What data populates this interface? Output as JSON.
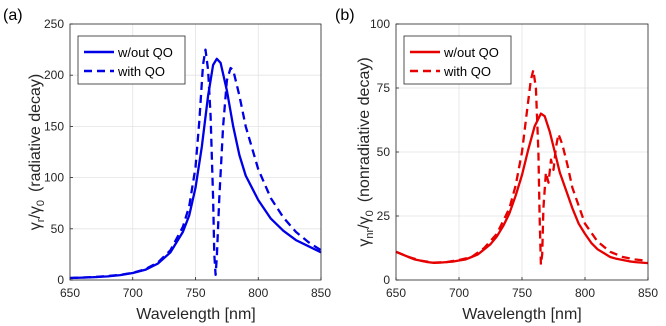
{
  "chart_data": [
    {
      "type": "line",
      "panel_label": "(a)",
      "xlabel": "Wavelength [nm]",
      "ylabel_symbol": "γ",
      "ylabel_sub1": "r",
      "ylabel_sep": "/γ",
      "ylabel_sub2": "0",
      "ylabel_desc": "(radiative decay)",
      "xlim": [
        650,
        850
      ],
      "ylim": [
        0,
        250
      ],
      "xticks": [
        650,
        700,
        750,
        800,
        850
      ],
      "yticks": [
        0,
        50,
        100,
        150,
        200,
        250
      ],
      "grid": true,
      "legend_position": "top-left",
      "color": "#0000e6",
      "series": [
        {
          "name": "w/out QO",
          "style": "solid",
          "points": [
            [
              650,
              2
            ],
            [
              660,
              2.3
            ],
            [
              670,
              2.8
            ],
            [
              680,
              3.5
            ],
            [
              690,
              4.8
            ],
            [
              700,
              6.8
            ],
            [
              710,
              10
            ],
            [
              720,
              16
            ],
            [
              730,
              27
            ],
            [
              740,
              47
            ],
            [
              745,
              63
            ],
            [
              750,
              90
            ],
            [
              755,
              130
            ],
            [
              760,
              180
            ],
            [
              764,
              210
            ],
            [
              767,
              216
            ],
            [
              770,
              212
            ],
            [
              775,
              185
            ],
            [
              780,
              150
            ],
            [
              785,
              122
            ],
            [
              790,
              102
            ],
            [
              800,
              78
            ],
            [
              810,
              60
            ],
            [
              820,
              48
            ],
            [
              830,
              39
            ],
            [
              840,
              33
            ],
            [
              850,
              27
            ]
          ]
        },
        {
          "name": "with QO",
          "style": "dashed",
          "points": [
            [
              650,
              2
            ],
            [
              670,
              2.9
            ],
            [
              690,
              5
            ],
            [
              700,
              7
            ],
            [
              710,
              10.5
            ],
            [
              720,
              17
            ],
            [
              730,
              29
            ],
            [
              740,
              52
            ],
            [
              745,
              72
            ],
            [
              750,
              110
            ],
            [
              753,
              155
            ],
            [
              756,
              210
            ],
            [
              758,
              225
            ],
            [
              760,
              205
            ],
            [
              762,
              160
            ],
            [
              764,
              80
            ],
            [
              765,
              25
            ],
            [
              766,
              5
            ],
            [
              767,
              22
            ],
            [
              769,
              80
            ],
            [
              772,
              150
            ],
            [
              775,
              195
            ],
            [
              778,
              207
            ],
            [
              780,
              205
            ],
            [
              785,
              180
            ],
            [
              790,
              150
            ],
            [
              800,
              108
            ],
            [
              810,
              80
            ],
            [
              820,
              61
            ],
            [
              830,
              47
            ],
            [
              840,
              37
            ],
            [
              850,
              29
            ]
          ]
        }
      ]
    },
    {
      "type": "line",
      "panel_label": "(b)",
      "xlabel": "Wavelength [nm]",
      "ylabel_symbol": "γ",
      "ylabel_sub1": "nr",
      "ylabel_sep": "/γ",
      "ylabel_sub2": "0",
      "ylabel_desc": "(nonradiative decay)",
      "xlim": [
        650,
        850
      ],
      "ylim": [
        0,
        100
      ],
      "xticks": [
        650,
        700,
        750,
        800,
        850
      ],
      "yticks": [
        0,
        25,
        50,
        75,
        100
      ],
      "grid": true,
      "legend_position": "top-left",
      "color": "#e60000",
      "series": [
        {
          "name": "w/out QO",
          "style": "solid",
          "points": [
            [
              650,
              11
            ],
            [
              655,
              10
            ],
            [
              660,
              9
            ],
            [
              665,
              8
            ],
            [
              670,
              7.5
            ],
            [
              675,
              7
            ],
            [
              680,
              6.7
            ],
            [
              685,
              6.8
            ],
            [
              690,
              7
            ],
            [
              695,
              7.2
            ],
            [
              700,
              7.6
            ],
            [
              705,
              8
            ],
            [
              710,
              9
            ],
            [
              715,
              10
            ],
            [
              720,
              12
            ],
            [
              725,
              14
            ],
            [
              730,
              17
            ],
            [
              735,
              21
            ],
            [
              740,
              26
            ],
            [
              745,
              33
            ],
            [
              750,
              41
            ],
            [
              755,
              51
            ],
            [
              760,
              60
            ],
            [
              765,
              65
            ],
            [
              768,
              64
            ],
            [
              772,
              58
            ],
            [
              776,
              50
            ],
            [
              780,
              42
            ],
            [
              785,
              35
            ],
            [
              790,
              28
            ],
            [
              795,
              22
            ],
            [
              800,
              18
            ],
            [
              805,
              14.5
            ],
            [
              810,
              12
            ],
            [
              815,
              10.5
            ],
            [
              820,
              9
            ],
            [
              825,
              8.3
            ],
            [
              830,
              7.8
            ],
            [
              835,
              7.3
            ],
            [
              840,
              7
            ],
            [
              845,
              6.8
            ],
            [
              850,
              6.6
            ]
          ]
        },
        {
          "name": "with QO",
          "style": "dashed",
          "points": [
            [
              650,
              11
            ],
            [
              660,
              9
            ],
            [
              670,
              7.5
            ],
            [
              680,
              6.8
            ],
            [
              690,
              7
            ],
            [
              700,
              7.8
            ],
            [
              710,
              9
            ],
            [
              720,
              12.5
            ],
            [
              730,
              18
            ],
            [
              740,
              28
            ],
            [
              745,
              37
            ],
            [
              750,
              50
            ],
            [
              754,
              66
            ],
            [
              757,
              78
            ],
            [
              759,
              82
            ],
            [
              761,
              75
            ],
            [
              763,
              50
            ],
            [
              764,
              25
            ],
            [
              765,
              6
            ],
            [
              766,
              10
            ],
            [
              767,
              28
            ],
            [
              769,
              42
            ],
            [
              771,
              38
            ],
            [
              773,
              47
            ],
            [
              775,
              43
            ],
            [
              777,
              52
            ],
            [
              779,
              57
            ],
            [
              782,
              53
            ],
            [
              786,
              45
            ],
            [
              790,
              36
            ],
            [
              795,
              29
            ],
            [
              800,
              22
            ],
            [
              810,
              15
            ],
            [
              820,
              11
            ],
            [
              830,
              9
            ],
            [
              840,
              8
            ],
            [
              850,
              7.5
            ]
          ]
        }
      ]
    }
  ]
}
